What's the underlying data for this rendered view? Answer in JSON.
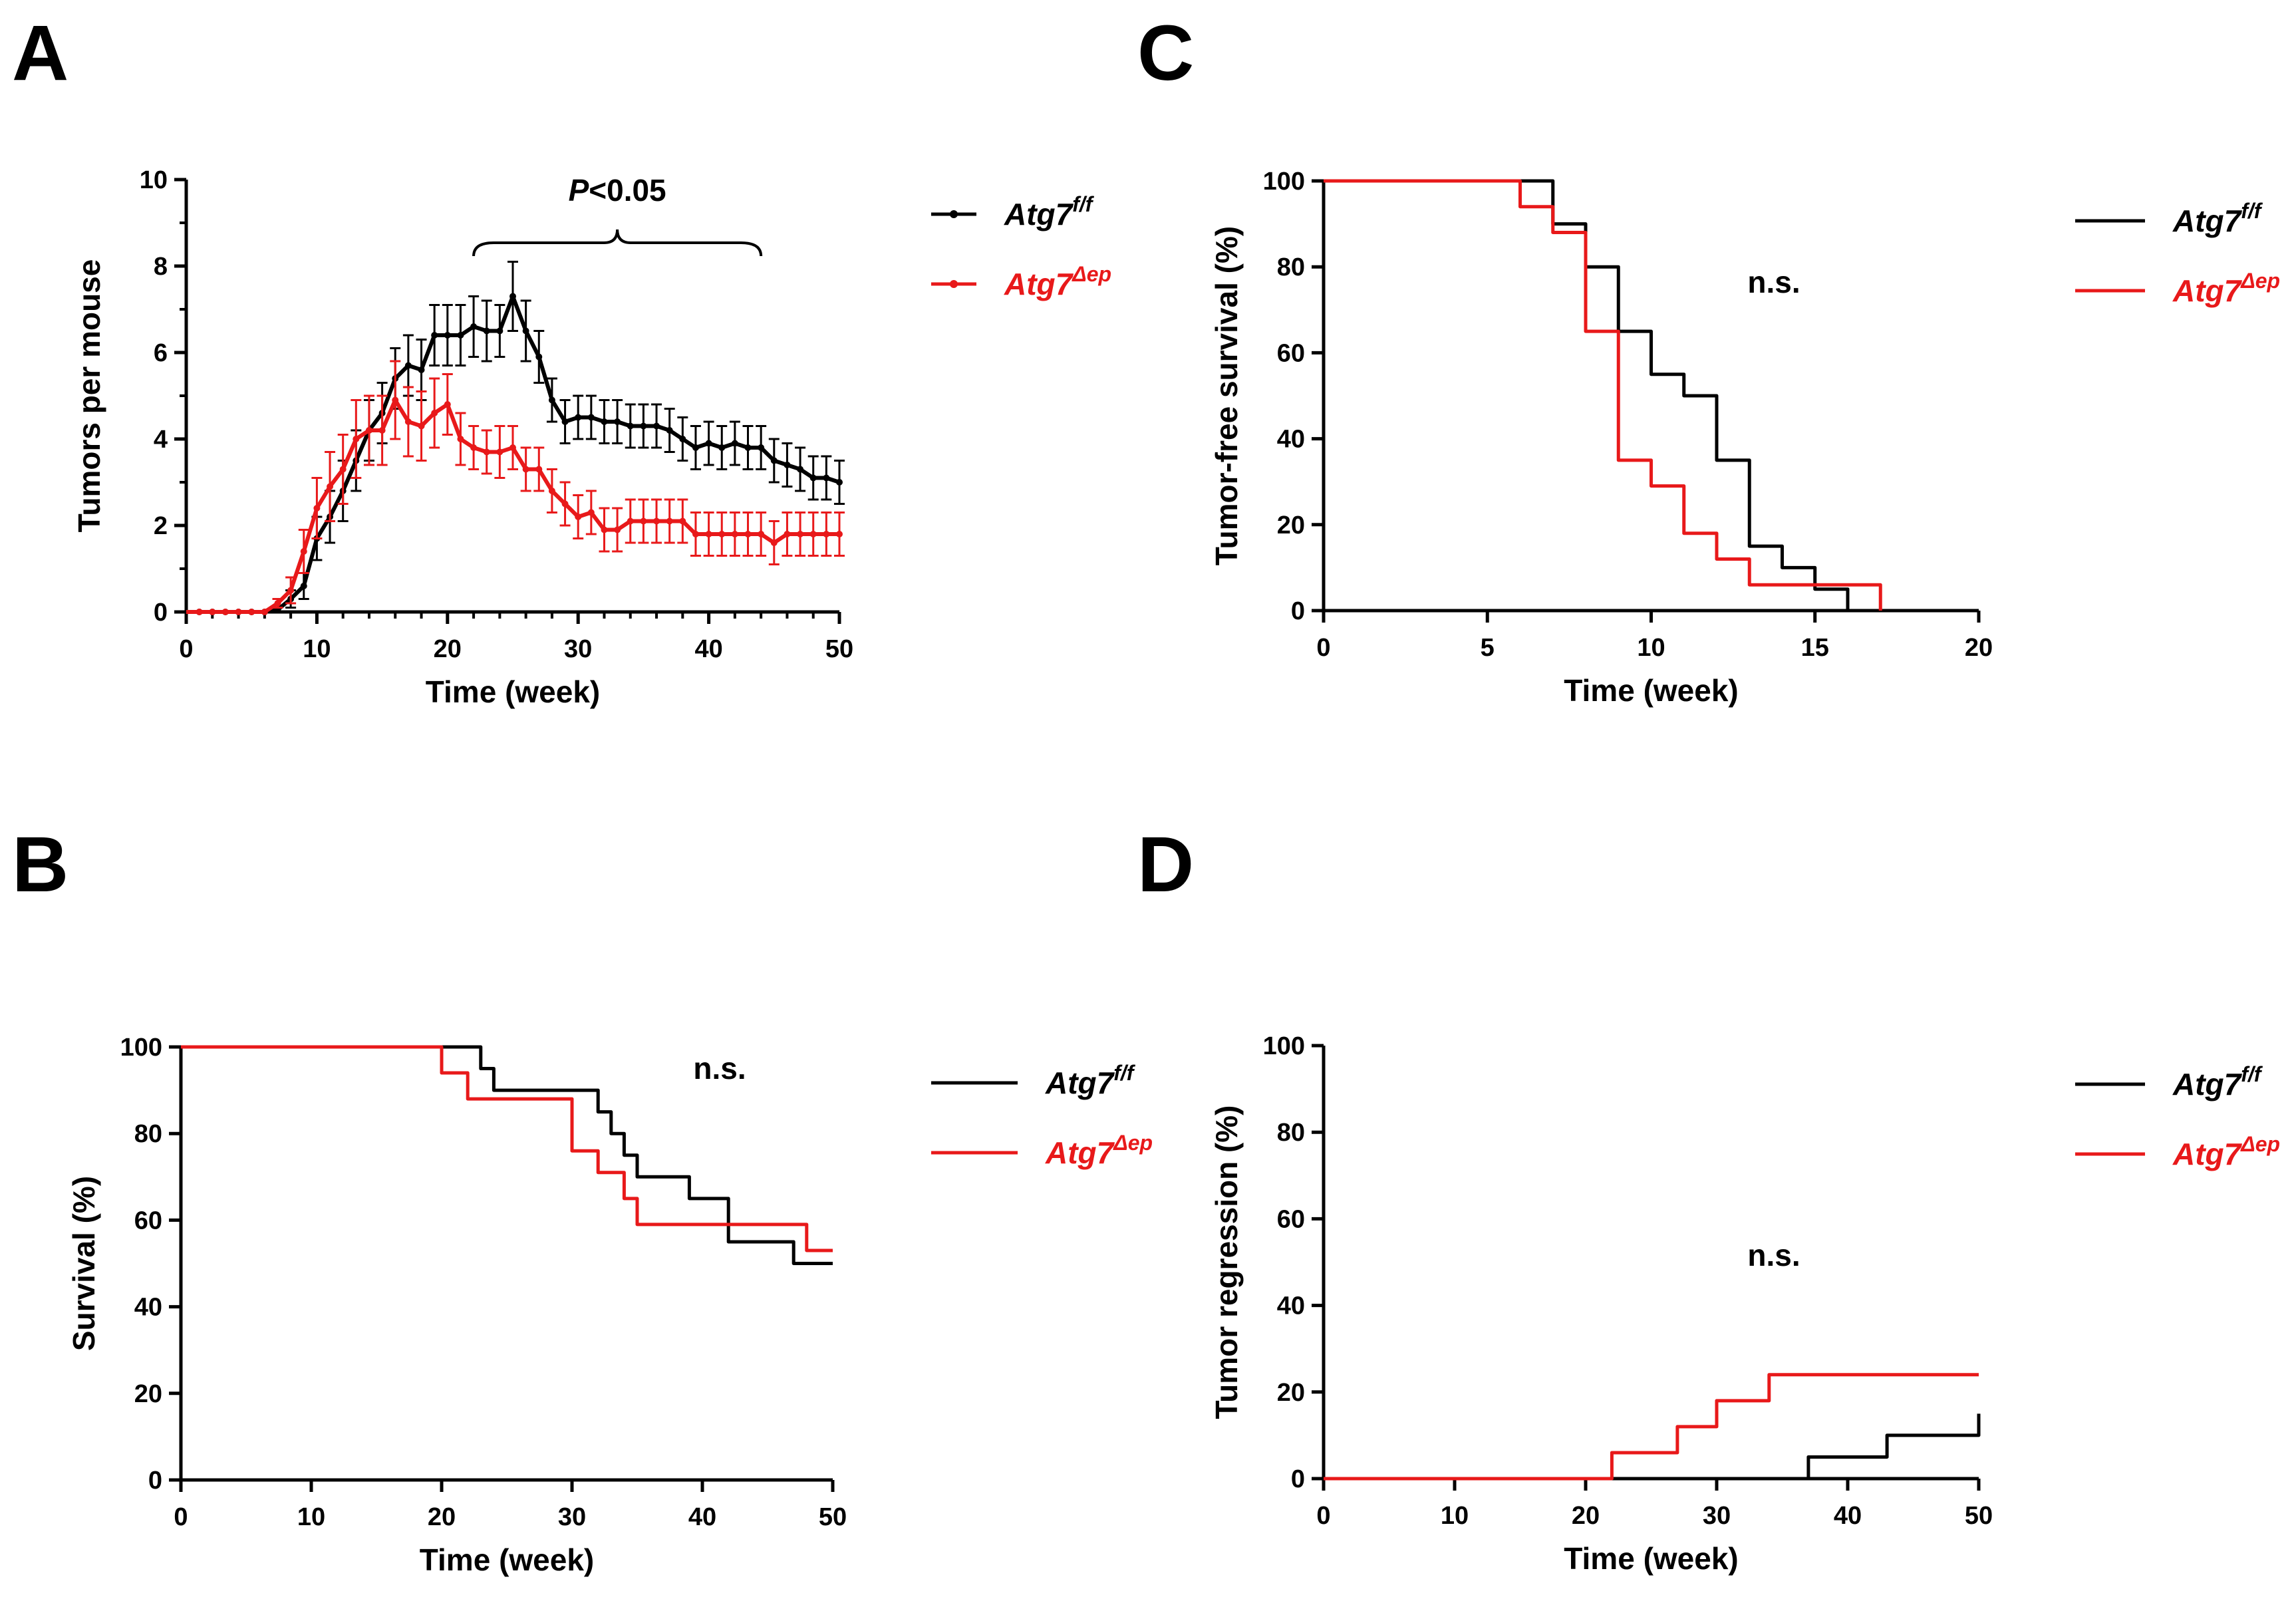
{
  "figure": {
    "panels": [
      "A",
      "B",
      "C",
      "D"
    ]
  },
  "colors": {
    "flox": "#000000",
    "dep": "#e8191a"
  },
  "legend": {
    "flox": {
      "main": "Atg7",
      "sup": "f/f"
    },
    "dep": {
      "main": "Atg7",
      "sup": "Δep"
    }
  },
  "chart_data": [
    {
      "panel": "A",
      "type": "line",
      "xlabel": "Time (week)",
      "ylabel": "Tumors per mouse",
      "xlim": [
        0,
        50
      ],
      "ylim": [
        0,
        10
      ],
      "xticks": [
        0,
        10,
        20,
        30,
        40,
        50
      ],
      "yticks": [
        0,
        2,
        4,
        6,
        8,
        10
      ],
      "annotation": {
        "italic": "P",
        "rest": "<0.05",
        "bracket_from": 22,
        "bracket_to": 44
      },
      "series": [
        {
          "name": "Atg7 f/f",
          "key": "flox",
          "x": [
            1,
            2,
            3,
            4,
            5,
            6,
            7,
            8,
            9,
            10,
            11,
            12,
            13,
            14,
            15,
            16,
            17,
            18,
            19,
            20,
            21,
            22,
            23,
            24,
            25,
            26,
            27,
            28,
            29,
            30,
            31,
            32,
            33,
            34,
            35,
            36,
            37,
            38,
            39,
            40,
            41,
            42,
            43,
            44,
            45,
            46,
            47,
            48,
            49,
            50
          ],
          "y": [
            0,
            0,
            0,
            0,
            0,
            0,
            0.05,
            0.3,
            0.6,
            1.7,
            2.2,
            2.8,
            3.5,
            4.2,
            4.6,
            5.4,
            5.7,
            5.6,
            6.4,
            6.4,
            6.4,
            6.6,
            6.5,
            6.5,
            7.3,
            6.5,
            5.9,
            4.9,
            4.4,
            4.5,
            4.5,
            4.4,
            4.4,
            4.3,
            4.3,
            4.3,
            4.2,
            4.0,
            3.8,
            3.9,
            3.8,
            3.9,
            3.8,
            3.8,
            3.5,
            3.4,
            3.3,
            3.1,
            3.1,
            3.0
          ],
          "err": [
            0,
            0,
            0,
            0,
            0,
            0,
            0.05,
            0.2,
            0.3,
            0.5,
            0.6,
            0.7,
            0.7,
            0.7,
            0.7,
            0.7,
            0.7,
            0.7,
            0.7,
            0.7,
            0.7,
            0.7,
            0.7,
            0.6,
            0.8,
            0.7,
            0.6,
            0.5,
            0.5,
            0.5,
            0.5,
            0.5,
            0.5,
            0.5,
            0.5,
            0.5,
            0.5,
            0.5,
            0.5,
            0.5,
            0.5,
            0.5,
            0.5,
            0.5,
            0.5,
            0.5,
            0.5,
            0.5,
            0.5,
            0.5
          ]
        },
        {
          "name": "Atg7 Δep",
          "key": "dep",
          "x": [
            1,
            2,
            3,
            4,
            5,
            6,
            7,
            8,
            9,
            10,
            11,
            12,
            13,
            14,
            15,
            16,
            17,
            18,
            19,
            20,
            21,
            22,
            23,
            24,
            25,
            26,
            27,
            28,
            29,
            30,
            31,
            32,
            33,
            34,
            35,
            36,
            37,
            38,
            39,
            40,
            41,
            42,
            43,
            44,
            45,
            46,
            47,
            48,
            49,
            50
          ],
          "y": [
            0,
            0,
            0,
            0,
            0,
            0,
            0.2,
            0.5,
            1.4,
            2.4,
            2.9,
            3.3,
            4.0,
            4.2,
            4.2,
            4.9,
            4.4,
            4.3,
            4.6,
            4.8,
            4.0,
            3.8,
            3.7,
            3.7,
            3.8,
            3.3,
            3.3,
            2.8,
            2.5,
            2.2,
            2.3,
            1.9,
            1.9,
            2.1,
            2.1,
            2.1,
            2.1,
            2.1,
            1.8,
            1.8,
            1.8,
            1.8,
            1.8,
            1.8,
            1.6,
            1.8,
            1.8,
            1.8,
            1.8,
            1.8
          ],
          "err": [
            0,
            0,
            0,
            0,
            0,
            0,
            0.1,
            0.3,
            0.5,
            0.7,
            0.8,
            0.8,
            0.9,
            0.8,
            0.8,
            0.9,
            0.8,
            0.8,
            0.8,
            0.7,
            0.6,
            0.5,
            0.5,
            0.6,
            0.5,
            0.5,
            0.5,
            0.5,
            0.5,
            0.5,
            0.5,
            0.5,
            0.5,
            0.5,
            0.5,
            0.5,
            0.5,
            0.5,
            0.5,
            0.5,
            0.5,
            0.5,
            0.5,
            0.5,
            0.5,
            0.5,
            0.5,
            0.5,
            0.5,
            0.5
          ]
        }
      ]
    },
    {
      "panel": "B",
      "type": "line",
      "step": true,
      "xlabel": "Time (week)",
      "ylabel": "Survival (%)",
      "xlim": [
        0,
        50
      ],
      "ylim": [
        0,
        100
      ],
      "xticks": [
        0,
        10,
        20,
        30,
        40,
        50
      ],
      "yticks": [
        0,
        20,
        40,
        60,
        80,
        100
      ],
      "annotation": "n.s.",
      "series": [
        {
          "name": "Atg7 f/f",
          "key": "flox",
          "x": [
            0,
            23,
            24,
            32,
            33,
            34,
            35,
            39,
            42,
            47,
            50
          ],
          "y": [
            100,
            95,
            90,
            85,
            80,
            75,
            70,
            65,
            55,
            50,
            50
          ]
        },
        {
          "name": "Atg7 Δep",
          "key": "dep",
          "x": [
            0,
            20,
            22,
            30,
            32,
            34,
            35,
            48,
            50
          ],
          "y": [
            100,
            94,
            88,
            76,
            71,
            65,
            59,
            53,
            53
          ]
        }
      ]
    },
    {
      "panel": "C",
      "type": "line",
      "step": true,
      "xlabel": "Time (week)",
      "ylabel": "Tumor-free survival (%)",
      "xlim": [
        0,
        20
      ],
      "ylim": [
        0,
        100
      ],
      "xticks": [
        0,
        5,
        10,
        15,
        20
      ],
      "yticks": [
        0,
        20,
        40,
        60,
        80,
        100
      ],
      "annotation": "n.s.",
      "series": [
        {
          "name": "Atg7 f/f",
          "key": "flox",
          "x": [
            0,
            7,
            8,
            9,
            10,
            11,
            12,
            13,
            14,
            15,
            16
          ],
          "y": [
            100,
            90,
            80,
            65,
            55,
            50,
            35,
            15,
            10,
            5,
            0
          ]
        },
        {
          "name": "Atg7 Δep",
          "key": "dep",
          "x": [
            0,
            6,
            7,
            8,
            9,
            10,
            11,
            12,
            13,
            17
          ],
          "y": [
            100,
            94,
            88,
            65,
            35,
            29,
            18,
            12,
            6,
            0
          ]
        }
      ]
    },
    {
      "panel": "D",
      "type": "line",
      "step": true,
      "xlabel": "Time (week)",
      "ylabel": "Tumor regression (%)",
      "xlim": [
        0,
        50
      ],
      "ylim": [
        0,
        100
      ],
      "xticks": [
        0,
        10,
        20,
        30,
        40,
        50
      ],
      "yticks": [
        0,
        20,
        40,
        60,
        80,
        100
      ],
      "annotation": "n.s.",
      "series": [
        {
          "name": "Atg7 f/f",
          "key": "flox",
          "x": [
            0,
            37,
            43,
            50,
            50
          ],
          "y": [
            0,
            5,
            10,
            10,
            15
          ]
        },
        {
          "name": "Atg7 Δep",
          "key": "dep",
          "x": [
            0,
            22,
            27,
            30,
            34,
            50
          ],
          "y": [
            0,
            6,
            12,
            18,
            24,
            24
          ]
        }
      ]
    }
  ]
}
